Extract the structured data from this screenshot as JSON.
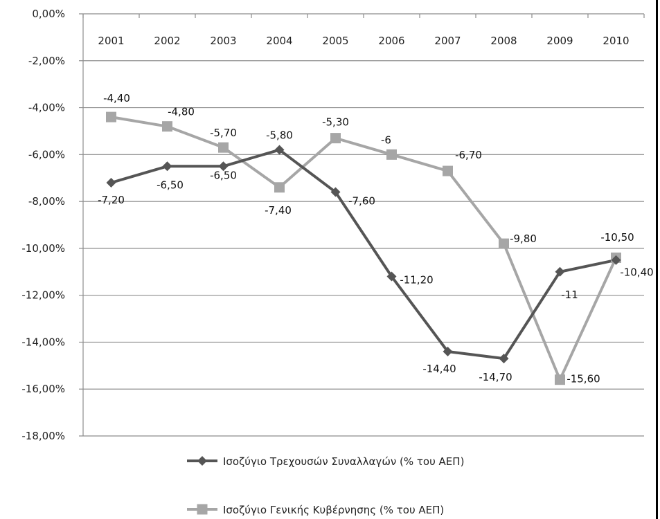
{
  "chart_data": {
    "type": "line",
    "title": "",
    "xlabel": "",
    "ylabel": "",
    "categories": [
      "2001",
      "2002",
      "2003",
      "2004",
      "2005",
      "2006",
      "2007",
      "2008",
      "2009",
      "2010"
    ],
    "y_ticks": [
      "0,00%",
      "-2,00%",
      "-4,00%",
      "-6,00%",
      "-8,00%",
      "-10,00%",
      "-12,00%",
      "-14,00%",
      "-16,00%",
      "-18,00%"
    ],
    "ylim": [
      -18,
      0
    ],
    "grid": true,
    "legend_position": "bottom",
    "series": [
      {
        "name": "Ισοζύγιο Τρεχουσών Συναλλαγών (% του ΑΕΠ)",
        "color": "#555555",
        "marker": "diamond",
        "values": [
          -7.2,
          -6.5,
          -6.5,
          -5.8,
          -7.6,
          -11.2,
          -14.4,
          -14.7,
          -11,
          -10.5
        ],
        "labels": [
          "-7,20",
          "-6,50",
          "-6,50",
          "-5,80",
          "-7,60",
          "-11,20",
          "-14,40",
          "-14,70",
          "-11",
          "-10,50"
        ]
      },
      {
        "name": "Ισοζύγιο Γενικής Κυβέρνησης (% του ΑΕΠ)",
        "color": "#a6a6a6",
        "marker": "square",
        "values": [
          -4.4,
          -4.8,
          -5.7,
          -7.4,
          -5.3,
          -6,
          -6.7,
          -9.8,
          -15.6,
          -10.4
        ],
        "labels": [
          "-4,40",
          "-4,80",
          "-5,70",
          "-7,40",
          "-5,30",
          "-6",
          "-6,70",
          "-9,80",
          "-15,60",
          "-10,40"
        ]
      }
    ]
  }
}
